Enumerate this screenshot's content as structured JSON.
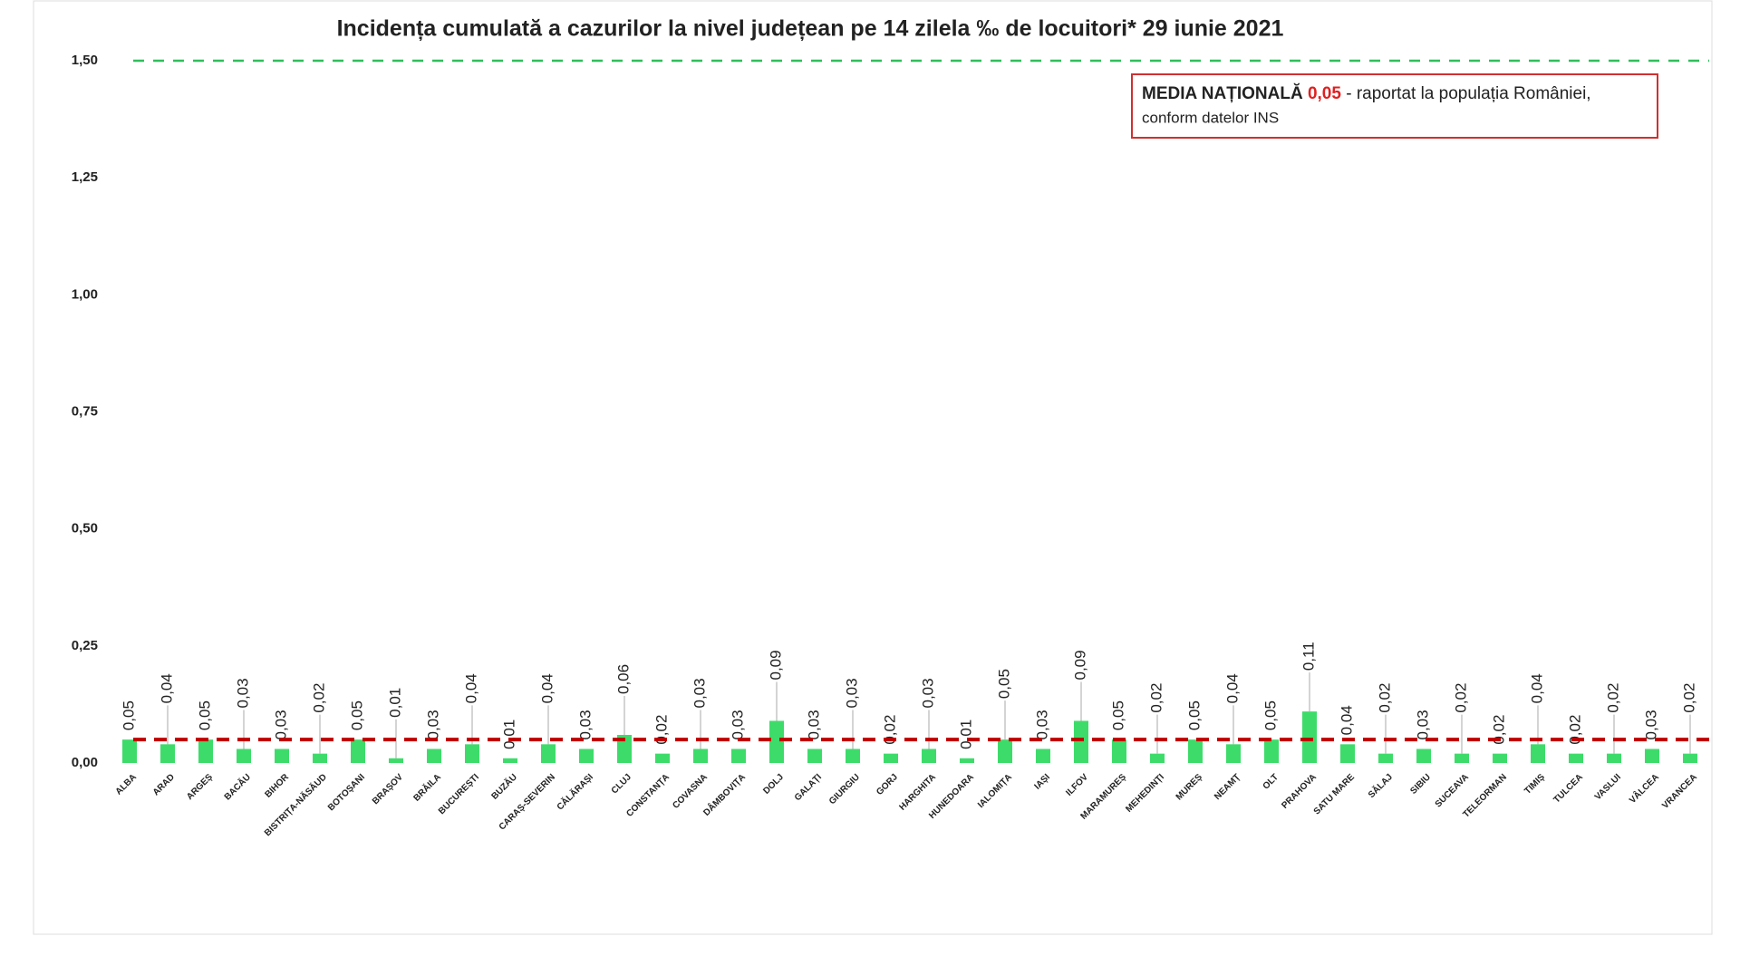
{
  "chart_data": {
    "type": "bar",
    "title": "Incidența cumulată a cazurilor la nivel județean pe 14 zilela ‰ de locuitori*  29 iunie 2021",
    "categories": [
      "ALBA",
      "ARAD",
      "ARGEȘ",
      "BACĂU",
      "BIHOR",
      "BISTRIȚA-NĂSĂUD",
      "BOTOȘANI",
      "BRAȘOV",
      "BRĂILA",
      "BUCUREȘTI",
      "BUZĂU",
      "CARAȘ-SEVERIN",
      "CĂLĂRAȘI",
      "CLUJ",
      "CONSTANȚA",
      "COVASNA",
      "DÂMBOVIȚA",
      "DOLJ",
      "GALAȚI",
      "GIURGIU",
      "GORJ",
      "HARGHITA",
      "HUNEDOARA",
      "IALOMIȚA",
      "IAȘI",
      "ILFOV",
      "MARAMUREȘ",
      "MEHEDINȚI",
      "MUREȘ",
      "NEAMȚ",
      "OLT",
      "PRAHOVA",
      "SATU MARE",
      "SĂLAJ",
      "SIBIU",
      "SUCEAVA",
      "TELEORMAN",
      "TIMIȘ",
      "TULCEA",
      "VASLUI",
      "VÂLCEA",
      "VRANCEA"
    ],
    "values": [
      0.05,
      0.04,
      0.05,
      0.03,
      0.03,
      0.02,
      0.05,
      0.01,
      0.03,
      0.04,
      0.01,
      0.04,
      0.03,
      0.06,
      0.02,
      0.03,
      0.03,
      0.09,
      0.03,
      0.03,
      0.02,
      0.03,
      0.01,
      0.05,
      0.03,
      0.09,
      0.05,
      0.02,
      0.05,
      0.04,
      0.05,
      0.11,
      0.04,
      0.02,
      0.03,
      0.02,
      0.02,
      0.04,
      0.02,
      0.02,
      0.03,
      0.02
    ],
    "value_labels": [
      "0,05",
      "0,04",
      "0,05",
      "0,03",
      "0,03",
      "0,02",
      "0,05",
      "0,01",
      "0,03",
      "0,04",
      "0,01",
      "0,04",
      "0,03",
      "0,06",
      "0,02",
      "0,03",
      "0,03",
      "0,09",
      "0,03",
      "0,03",
      "0,02",
      "0,03",
      "0,01",
      "0,05",
      "0,03",
      "0,09",
      "0,05",
      "0,02",
      "0,05",
      "0,04",
      "0,05",
      "0,11",
      "0,04",
      "0,02",
      "0,03",
      "0,02",
      "0,02",
      "0,04",
      "0,02",
      "0,02",
      "0,03",
      "0,02"
    ],
    "color": "#3ddc6a",
    "ylim": [
      0,
      1.5
    ],
    "yticks": [
      {
        "value": 0,
        "label": "0,00"
      },
      {
        "value": 0.25,
        "label": "0,25"
      },
      {
        "value": 0.5,
        "label": "0,50"
      },
      {
        "value": 0.75,
        "label": "0,75"
      },
      {
        "value": 1,
        "label": "1,00"
      },
      {
        "value": 1.25,
        "label": "1,25"
      },
      {
        "value": 1.5,
        "label": "1,50"
      }
    ],
    "reference_lines": [
      {
        "value": 1.5,
        "color": "#2fbf5a"
      },
      {
        "value": 0.05,
        "color": "#c00000"
      }
    ],
    "annotation": {
      "title": "MEDIA NAȚIONALĂ",
      "value": "0,05",
      "text": "- raportat la populația României,",
      "text2": "conform datelor INS"
    }
  }
}
